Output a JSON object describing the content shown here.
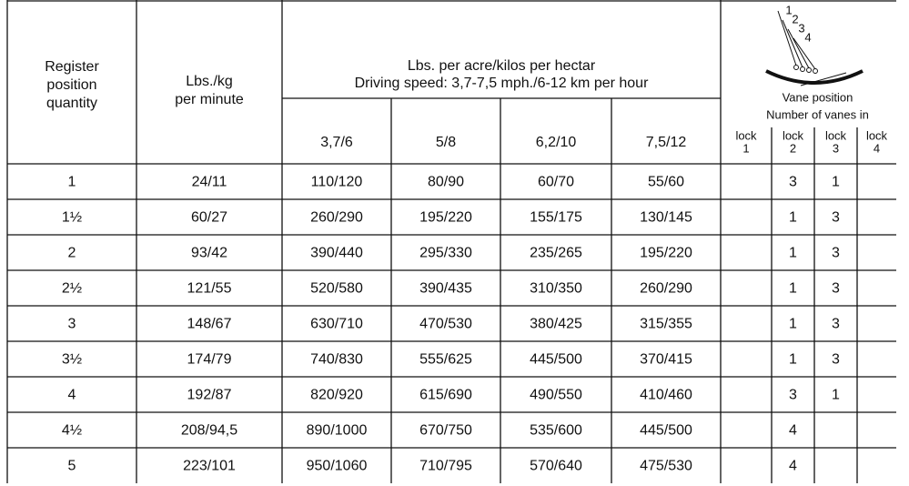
{
  "header": {
    "position": [
      "Register",
      "position",
      "quantity"
    ],
    "rate": [
      "Lbs./kg",
      "per minute"
    ],
    "group": [
      "Lbs. per acre/kilos per hectar",
      "Driving speed: 3,7-7,5 mph./6-12 km per hour"
    ],
    "speeds": [
      "3,7/6",
      "5/8",
      "6,2/10",
      "7,5/12"
    ],
    "vane": {
      "diagram_labels": [
        "1",
        "2",
        "3",
        "4"
      ],
      "caption": [
        "Vane position",
        "Number of vanes in"
      ],
      "locks": [
        [
          "lock",
          "1"
        ],
        [
          "lock",
          "2"
        ],
        [
          "lock",
          "3"
        ],
        [
          "lock",
          "4"
        ]
      ]
    }
  },
  "table": {
    "rows": [
      [
        "1",
        "24/11",
        "110/120",
        "80/90",
        "60/70",
        "55/60",
        null,
        "3",
        "1",
        null
      ],
      [
        "1½",
        "60/27",
        "260/290",
        "195/220",
        "155/175",
        "130/145",
        null,
        "1",
        "3",
        null
      ],
      [
        "2",
        "93/42",
        "390/440",
        "295/330",
        "235/265",
        "195/220",
        null,
        "1",
        "3",
        null
      ],
      [
        "2½",
        "121/55",
        "520/580",
        "390/435",
        "310/350",
        "260/290",
        null,
        "1",
        "3",
        null
      ],
      [
        "3",
        "148/67",
        "630/710",
        "470/530",
        "380/425",
        "315/355",
        null,
        "1",
        "3",
        null
      ],
      [
        "3½",
        "174/79",
        "740/830",
        "555/625",
        "445/500",
        "370/415",
        null,
        "1",
        "3",
        null
      ],
      [
        "4",
        "192/87",
        "820/920",
        "615/690",
        "490/550",
        "410/460",
        null,
        "3",
        "1",
        null
      ],
      [
        "4½",
        "208/94,5",
        "890/1000",
        "670/750",
        "535/600",
        "445/500",
        null,
        "4",
        null,
        null
      ],
      [
        "5",
        "223/101",
        "950/1060",
        "710/795",
        "570/640",
        "475/530",
        null,
        "4",
        null,
        null
      ]
    ]
  }
}
